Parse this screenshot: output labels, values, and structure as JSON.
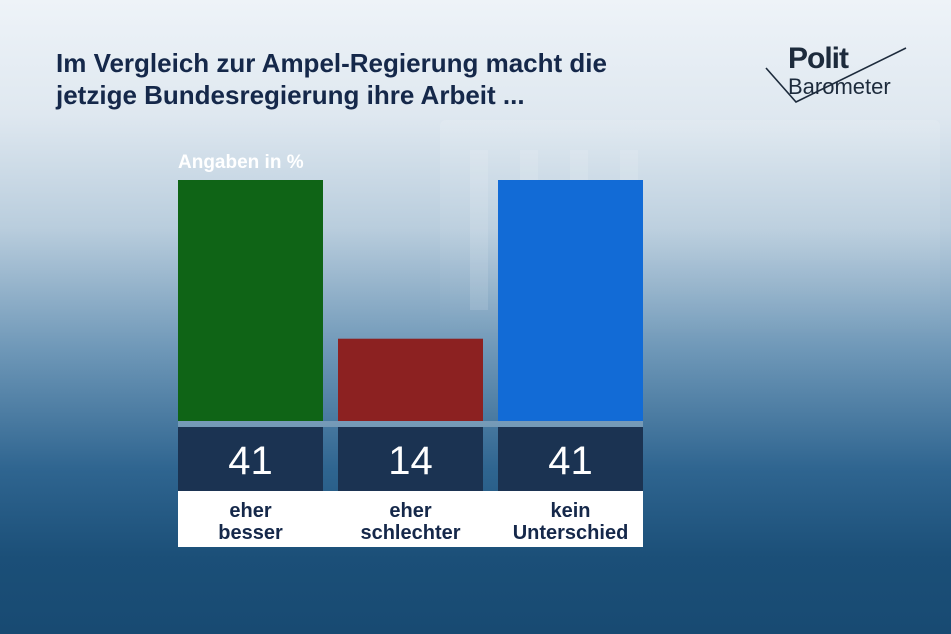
{
  "title_line1": "Im Vergleich zur Ampel-Regierung macht die",
  "title_line2": "jetzige Bundesregierung ihre Arbeit ...",
  "logo": {
    "line1": "Polit",
    "line2": "Barometer"
  },
  "unit_label": "Angaben in %",
  "colors": {
    "green": "#0f6416",
    "red": "#8c2121",
    "blue": "#126bd6",
    "value_box": "#1b3352",
    "label_box": "#ffffff"
  },
  "chart_data": {
    "type": "bar",
    "title": "Im Vergleich zur Ampel-Regierung macht die jetzige Bundesregierung ihre Arbeit ...",
    "ylabel": "Angaben in %",
    "ylim": [
      0,
      41
    ],
    "categories": [
      {
        "line1": "eher",
        "line2": "besser"
      },
      {
        "line1": "eher",
        "line2": "schlechter"
      },
      {
        "line1": "kein",
        "line2": "Unterschied"
      }
    ],
    "values": [
      41,
      14,
      41
    ],
    "bar_colors": [
      "#0f6416",
      "#8c2121",
      "#126bd6"
    ]
  }
}
